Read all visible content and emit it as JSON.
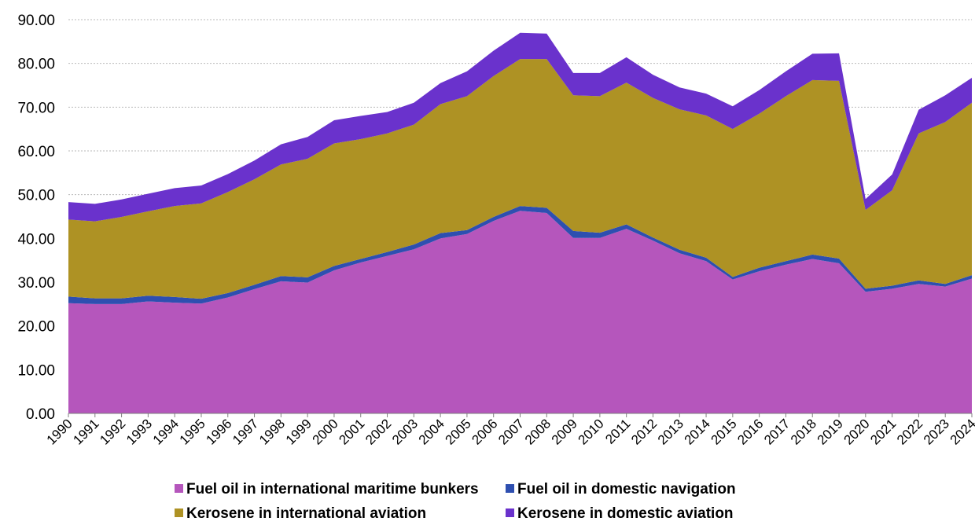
{
  "chart_data": {
    "type": "area",
    "stacked": true,
    "title": "",
    "xlabel": "",
    "ylabel": "",
    "ylim": [
      0,
      90
    ],
    "yticks": [
      "0.00",
      "10.00",
      "20.00",
      "30.00",
      "40.00",
      "50.00",
      "60.00",
      "70.00",
      "80.00",
      "90.00"
    ],
    "grid": true,
    "legend_position": "bottom",
    "categories": [
      "1990",
      "1991",
      "1992",
      "1993",
      "1994",
      "1995",
      "1996",
      "1997",
      "1998",
      "1999",
      "2000",
      "2001",
      "2002",
      "2003",
      "2004",
      "2005",
      "2006",
      "2007",
      "2008",
      "2009",
      "2010",
      "2011",
      "2012",
      "2013",
      "2014",
      "2015",
      "2016",
      "2017",
      "2018",
      "2019",
      "2020",
      "2021",
      "2022",
      "2023",
      "2024"
    ],
    "series": [
      {
        "name": "Fuel oil in international maritime bunkers",
        "color": "#b556bc",
        "values": [
          25.2,
          25.0,
          25.0,
          25.6,
          25.3,
          25.1,
          26.5,
          28.4,
          30.2,
          29.9,
          32.7,
          34.5,
          36.0,
          37.5,
          40.0,
          41.0,
          44.0,
          46.3,
          45.8,
          40.1,
          40.1,
          42.2,
          39.5,
          36.6,
          34.8,
          30.6,
          32.5,
          34.0,
          35.3,
          34.3,
          27.8,
          28.5,
          29.6,
          29.0,
          30.8
        ]
      },
      {
        "name": "Fuel oil in domestic navigation",
        "color": "#2e4fb0",
        "values": [
          1.5,
          1.3,
          1.3,
          1.3,
          1.3,
          1.1,
          1.0,
          1.0,
          1.2,
          1.2,
          1.0,
          0.8,
          0.9,
          1.1,
          1.2,
          0.9,
          0.9,
          1.1,
          1.2,
          1.6,
          1.2,
          1.0,
          0.7,
          0.8,
          0.8,
          0.6,
          0.8,
          0.8,
          1.0,
          1.1,
          0.7,
          0.7,
          0.8,
          0.6,
          0.8
        ]
      },
      {
        "name": "Kerosene in international aviation",
        "color": "#ae9224",
        "values": [
          17.6,
          17.6,
          18.6,
          19.3,
          20.8,
          21.8,
          23.1,
          24.1,
          25.5,
          27.1,
          28.0,
          27.4,
          27.1,
          27.4,
          29.5,
          30.6,
          32.2,
          33.6,
          34.0,
          31.0,
          31.2,
          32.4,
          31.9,
          32.1,
          32.5,
          33.8,
          35.2,
          37.7,
          39.9,
          40.6,
          18.0,
          21.8,
          33.6,
          37.0,
          39.4
        ]
      },
      {
        "name": "Kerosene in domestic aviation",
        "color": "#6a32cc",
        "values": [
          4.0,
          4.0,
          4.0,
          4.0,
          4.1,
          4.1,
          4.1,
          4.3,
          4.6,
          5.0,
          5.3,
          5.3,
          4.9,
          5.0,
          4.8,
          5.7,
          5.8,
          6.0,
          5.8,
          5.1,
          5.3,
          5.8,
          5.3,
          5.0,
          5.0,
          5.2,
          5.4,
          5.7,
          6.0,
          6.3,
          2.5,
          3.6,
          5.4,
          6.1,
          5.7
        ]
      }
    ]
  }
}
